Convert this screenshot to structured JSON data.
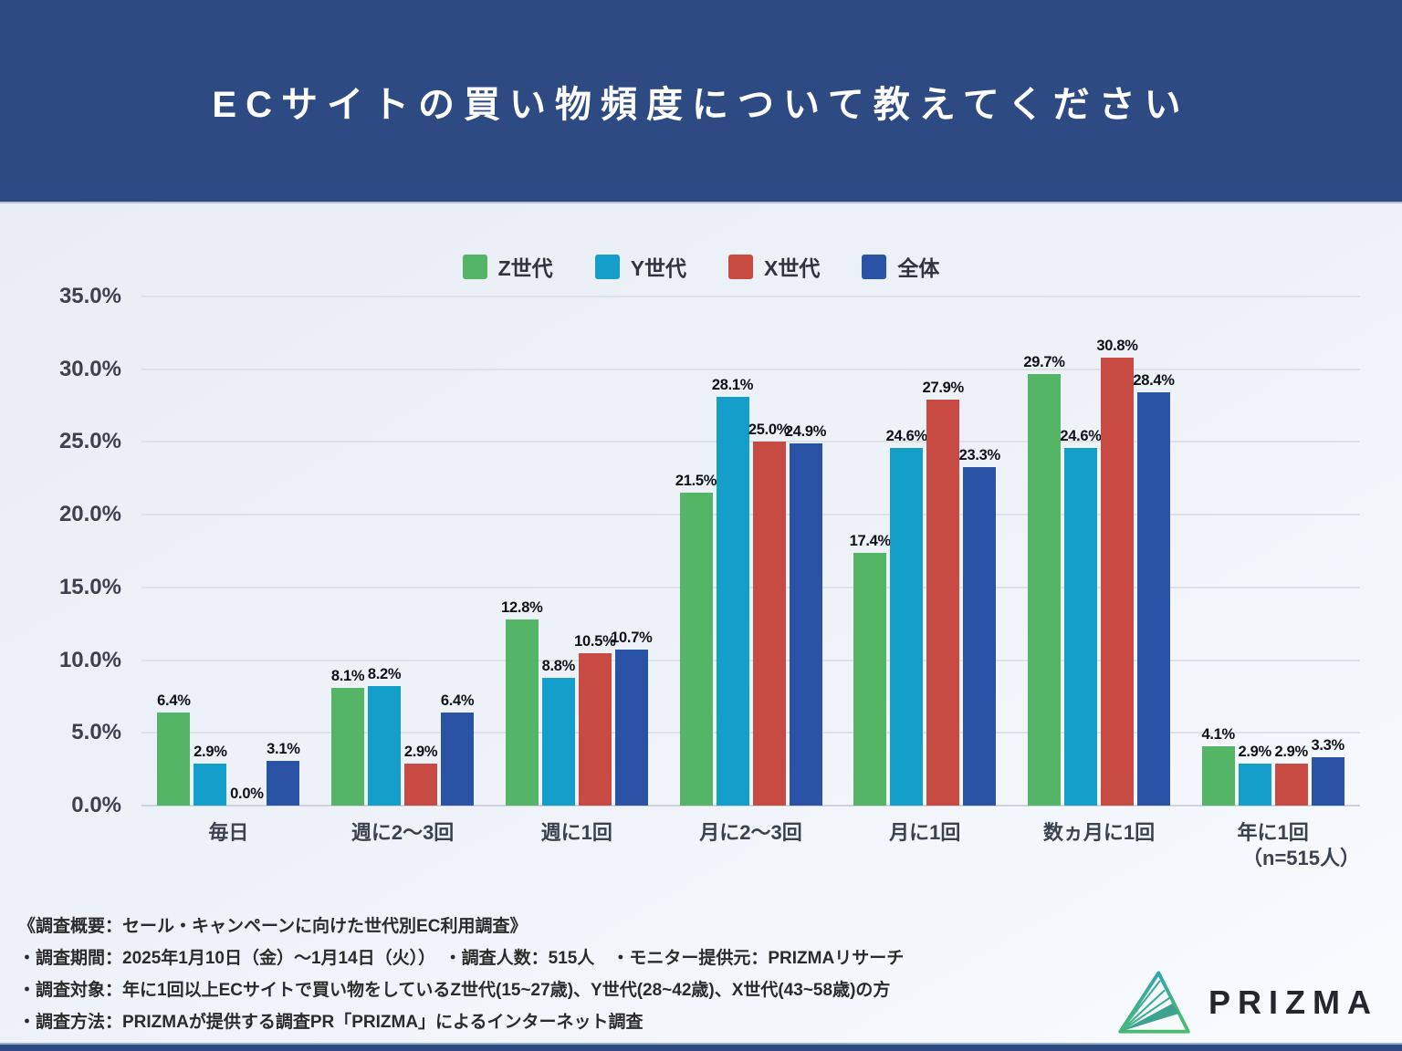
{
  "header": {
    "title": "ECサイトの買い物頻度について教えてください"
  },
  "chart_data": {
    "type": "bar",
    "title": "ECサイトの買い物頻度について教えてください",
    "categories": [
      "毎日",
      "週に2〜3回",
      "週に1回",
      "月に2〜3回",
      "月に1回",
      "数ヵ月に1回",
      "年に1回"
    ],
    "series": [
      {
        "name": "Z世代",
        "color": "#54b566",
        "values": [
          6.4,
          8.1,
          12.8,
          21.5,
          17.4,
          29.7,
          4.1
        ]
      },
      {
        "name": "Y世代",
        "color": "#149fca",
        "values": [
          2.9,
          8.2,
          8.8,
          28.1,
          24.6,
          24.6,
          2.9
        ]
      },
      {
        "name": "X世代",
        "color": "#c74a43",
        "values": [
          0.0,
          2.9,
          10.5,
          25.0,
          27.9,
          30.8,
          2.9
        ]
      },
      {
        "name": "全体",
        "color": "#2a53a6",
        "values": [
          3.1,
          6.4,
          10.7,
          24.9,
          23.3,
          28.4,
          3.3
        ]
      }
    ],
    "xlabel": "",
    "ylabel": "",
    "ylim": [
      0,
      35
    ],
    "ytick_step": 5,
    "ytick_format_suffix": "%",
    "value_label_suffix": "%",
    "grid": "horizontal",
    "legend_position": "top"
  },
  "annotations": {
    "sample_size": "（n=515人）"
  },
  "footer": {
    "lines": [
      "《調査概要：セール・キャンペーンに向けた世代別EC利用調査》",
      "・調査期間：2025年1月10日（金）〜1月14日（火））　・調査人数：515人　・モニター提供元：PRIZMAリサーチ",
      "・調査対象：年に1回以上ECサイトで買い物をしているZ世代(15~27歳)、Y世代(28~42歳)、X世代(43~58歳)の方",
      "・調査方法：PRIZMAが提供する調査PR「PRIZMA」によるインターネット調査"
    ]
  },
  "logo": {
    "text": "PRIZMA"
  },
  "colors": {
    "header_bg": "#2e4a82",
    "accent_green": "#54b566",
    "accent_cyan": "#149fca",
    "accent_red": "#c74a43",
    "accent_blue": "#2a53a6"
  }
}
